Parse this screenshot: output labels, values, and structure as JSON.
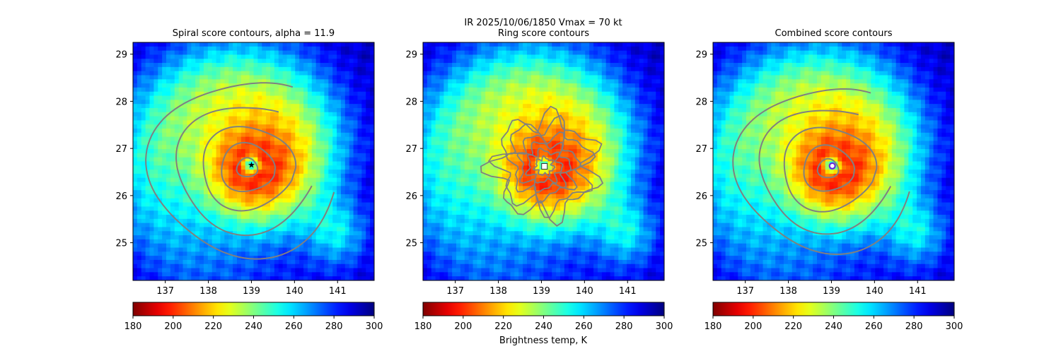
{
  "figure": {
    "suptitle_line1": "IR  2025/10/06/1850    Vmax = 70 kt",
    "colorbar_label": "Brightness temp, K"
  },
  "chart_data": [
    {
      "type": "heatmap",
      "title": "Spiral score contours, alpha = 11.9",
      "x_ticks": [
        137,
        138,
        139,
        140,
        141
      ],
      "y_ticks": [
        25,
        26,
        27,
        28,
        29
      ],
      "xlim": [
        136.25,
        141.85
      ],
      "ylim": [
        24.2,
        29.25
      ],
      "center": [
        139.0,
        26.65
      ],
      "center_marker": "star",
      "contours": "spiral-score",
      "colorbar": {
        "range": [
          180,
          300
        ],
        "ticks": [
          180,
          200,
          220,
          240,
          260,
          280,
          300
        ],
        "colormap": "jet_r"
      }
    },
    {
      "type": "heatmap",
      "title": "Ring score contours",
      "x_ticks": [
        137,
        138,
        139,
        140,
        141
      ],
      "y_ticks": [
        25,
        26,
        27,
        28,
        29
      ],
      "xlim": [
        136.25,
        141.85
      ],
      "ylim": [
        24.2,
        29.25
      ],
      "center": [
        139.07,
        26.62
      ],
      "center_marker": "square",
      "contours": "ring-score",
      "colorbar": {
        "range": [
          180,
          300
        ],
        "ticks": [
          180,
          200,
          220,
          240,
          260,
          280,
          300
        ],
        "colormap": "jet_r"
      }
    },
    {
      "type": "heatmap",
      "title": "Combined score contours",
      "x_ticks": [
        137,
        138,
        139,
        140,
        141
      ],
      "y_ticks": [
        25,
        26,
        27,
        28,
        29
      ],
      "xlim": [
        136.25,
        141.85
      ],
      "ylim": [
        24.2,
        29.25
      ],
      "center": [
        139.02,
        26.63
      ],
      "center_marker": "circle",
      "contours": "combined-score",
      "colorbar": {
        "range": [
          180,
          300
        ],
        "ticks": [
          180,
          200,
          220,
          240,
          260,
          280,
          300
        ],
        "colormap": "jet_r"
      }
    }
  ]
}
